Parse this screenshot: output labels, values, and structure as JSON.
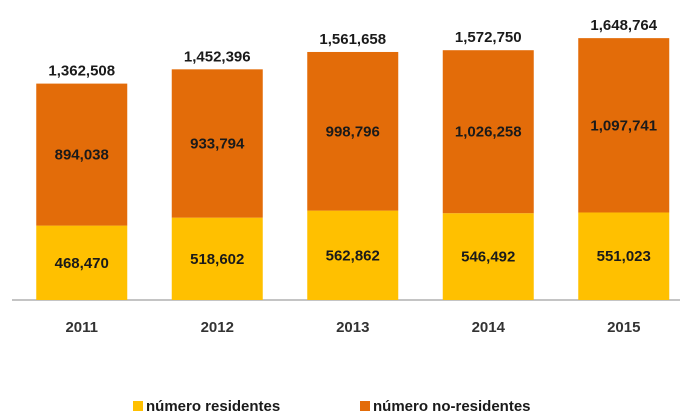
{
  "chart_data": {
    "type": "stacked_bar",
    "categories": [
      "2011",
      "2012",
      "2013",
      "2014",
      "2015"
    ],
    "series": [
      {
        "name": "número residentes",
        "color": "#ffc000",
        "values": [
          468470,
          518602,
          562862,
          546492,
          551023
        ],
        "value_labels": [
          "468,470",
          "518,602",
          "562,862",
          "546,492",
          "551,023"
        ]
      },
      {
        "name": "número no-residentes",
        "color": "#e36c09",
        "values": [
          894038,
          933794,
          998796,
          1026258,
          1097741
        ],
        "value_labels": [
          "894,038",
          "933,794",
          "998,796",
          "1,026,258",
          "1,097,741"
        ]
      }
    ],
    "totals": [
      1362508,
      1452396,
      1561658,
      1572750,
      1648764
    ],
    "total_labels": [
      "1,362,508",
      "1,452,396",
      "1,561,658",
      "1,572,750",
      "1,648,764"
    ],
    "ylim": [
      0,
      1700000
    ],
    "legend": "bottom"
  }
}
